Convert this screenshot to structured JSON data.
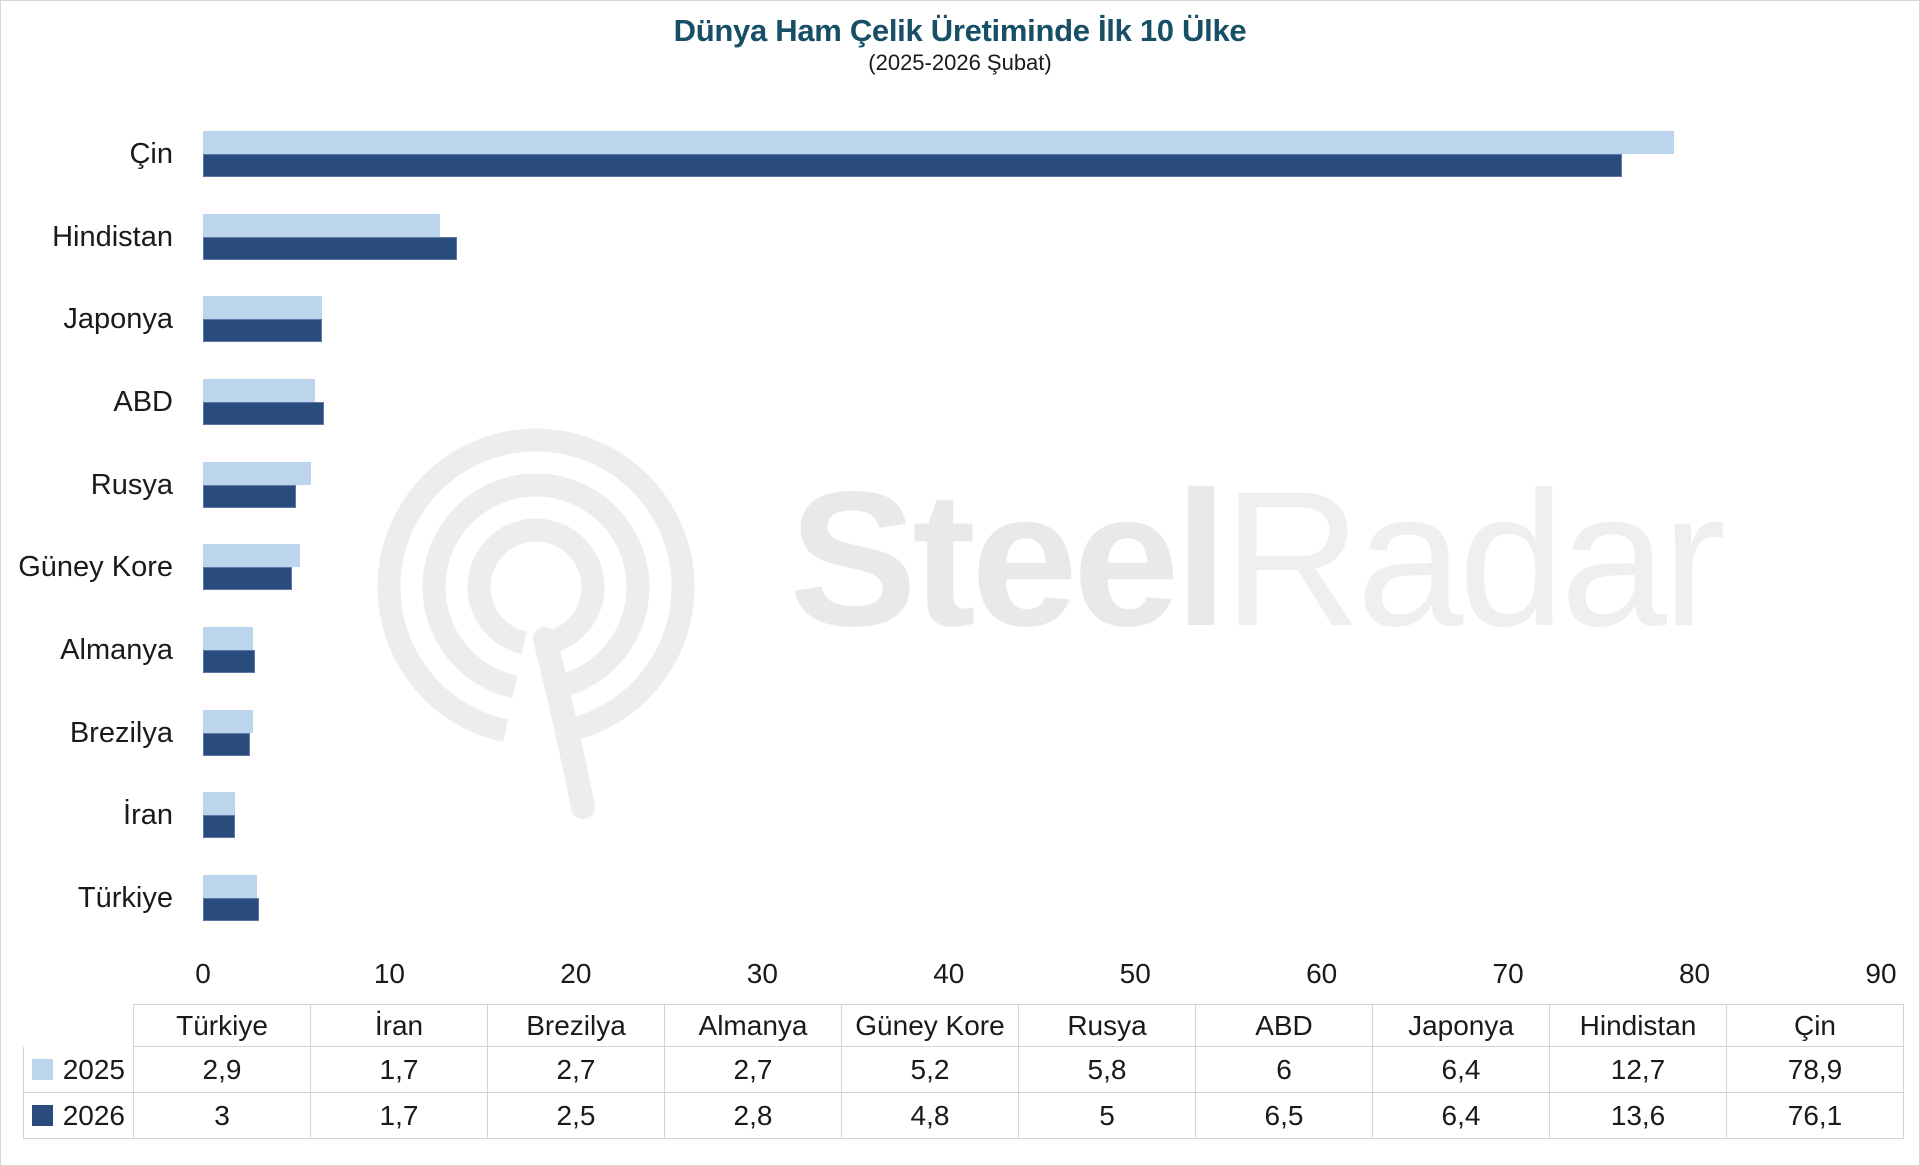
{
  "title": "Dünya Ham Çelik Üretiminde İlk 10 Ülke",
  "subtitle": "(2025-2026 Şubat)",
  "watermark": {
    "steel": "Steel",
    "radar": "Radar"
  },
  "colors": {
    "series_2025": "#BCD4EC",
    "series_2026": "#2A4C7C",
    "title_text": "#174F66",
    "table_border": "#d4d4d4",
    "watermark_gray": "#ebebee"
  },
  "chart_data": {
    "type": "bar",
    "orientation": "horizontal",
    "title": "Dünya Ham Çelik Üretiminde İlk 10 Ülke",
    "subtitle": "(2025-2026 Şubat)",
    "categories": [
      "Çin",
      "Hindistan",
      "Japonya",
      "ABD",
      "Rusya",
      "Güney Kore",
      "Almanya",
      "Brezilya",
      "İran",
      "Türkiye"
    ],
    "series": [
      {
        "name": "2025",
        "color": "#BCD4EC",
        "values": [
          78.9,
          12.7,
          6.4,
          6,
          5.8,
          5.2,
          2.7,
          2.7,
          1.7,
          2.9
        ]
      },
      {
        "name": "2026",
        "color": "#2A4C7C",
        "values": [
          76.1,
          13.6,
          6.4,
          6.5,
          5,
          4.8,
          2.8,
          2.5,
          1.7,
          3
        ]
      }
    ],
    "xlim": [
      0,
      90
    ],
    "xticks": [
      0,
      10,
      20,
      30,
      40,
      50,
      60,
      70,
      80,
      90
    ],
    "grid": false,
    "legend_position": "table-left"
  },
  "table": {
    "row_headers": [
      "2025",
      "2026"
    ],
    "columns": [
      "Türkiye",
      "İran",
      "Brezilya",
      "Almanya",
      "Güney Kore",
      "Rusya",
      "ABD",
      "Japonya",
      "Hindistan",
      "Çin"
    ],
    "rows": [
      [
        "2,9",
        "1,7",
        "2,7",
        "2,7",
        "5,2",
        "5,8",
        "6",
        "6,4",
        "12,7",
        "78,9"
      ],
      [
        "3",
        "1,7",
        "2,5",
        "2,8",
        "4,8",
        "5",
        "6,5",
        "6,4",
        "13,6",
        "76,1"
      ]
    ]
  }
}
